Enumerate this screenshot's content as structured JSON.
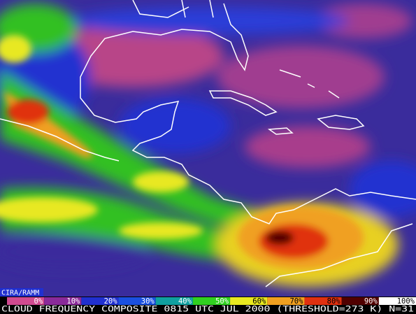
{
  "credit": "CIRA/RAMM",
  "legend": [
    {
      "label": "0%",
      "color": "#d04a90"
    },
    {
      "label": "10%",
      "color": "#8a2a9a"
    },
    {
      "label": "20%",
      "color": "#2030d0"
    },
    {
      "label": "30%",
      "color": "#1a50e0"
    },
    {
      "label": "40%",
      "color": "#10a0a0"
    },
    {
      "label": "50%",
      "color": "#30d020"
    },
    {
      "label": "60%",
      "color": "#e8e820"
    },
    {
      "label": "70%",
      "color": "#f0a020"
    },
    {
      "label": "80%",
      "color": "#e03010"
    },
    {
      "label": "90%",
      "color": "#500000"
    },
    {
      "label": "100%",
      "color": "#ffffff"
    }
  ],
  "caption": "CLOUD FREQUENCY COMPOSITE 0815 UTC JUL 2000 (THRESHOLD=273 K) N=31"
}
